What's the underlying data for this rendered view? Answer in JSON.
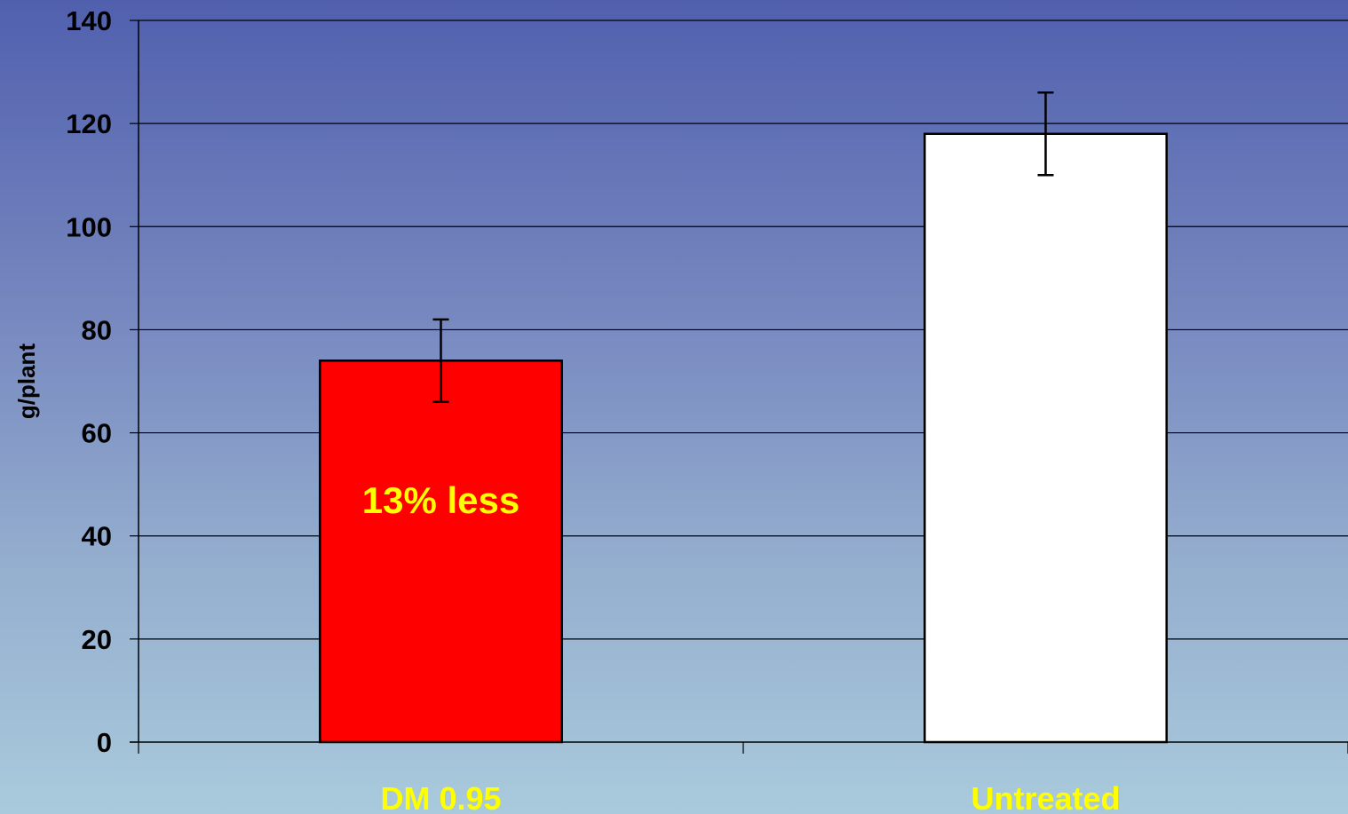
{
  "chart_data": {
    "type": "bar",
    "categories": [
      "DM 0.95",
      "Untreated"
    ],
    "values": [
      74,
      118
    ],
    "error": [
      8,
      8
    ],
    "bar_colors": [
      "#ff0000",
      "#ffffff"
    ],
    "ylabel": "g/plant",
    "ylim": [
      0,
      140
    ],
    "yticks": [
      "0",
      "20",
      "40",
      "60",
      "80",
      "100",
      "120",
      "140"
    ],
    "grid": true,
    "annotations": [
      {
        "text": "13% less",
        "category": "DM 0.95",
        "y": 47,
        "color": "#ffff00"
      }
    ],
    "category_label_color": "#ffff00"
  }
}
